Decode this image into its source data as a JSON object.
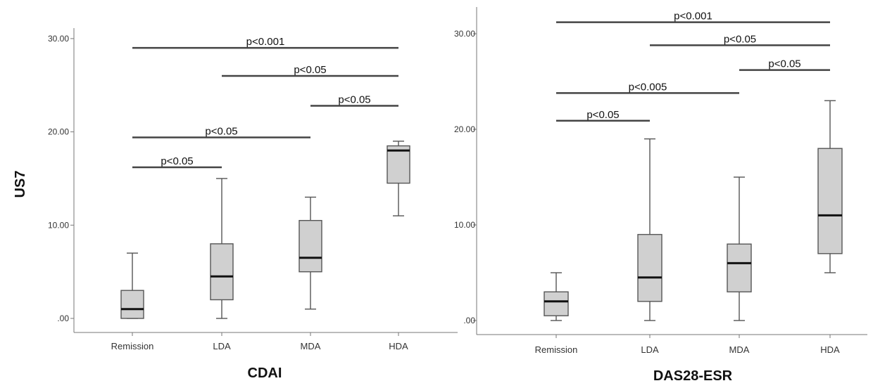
{
  "chart_data": [
    {
      "type": "box",
      "xlabel": "CDAI",
      "ylabel": "US7",
      "ylim": [
        0,
        30
      ],
      "yticks": [
        ".00",
        "10.00",
        "20.00",
        "30.00"
      ],
      "yticks_values": [
        0,
        10,
        20,
        30
      ],
      "categories": [
        "Remission",
        "LDA",
        "MDA",
        "HDA"
      ],
      "boxes": [
        {
          "category": "Remission",
          "min": 0,
          "q1": 0,
          "median": 1,
          "q3": 3,
          "max": 7
        },
        {
          "category": "LDA",
          "min": 0,
          "q1": 2,
          "median": 4.5,
          "q3": 8,
          "max": 15
        },
        {
          "category": "MDA",
          "min": 1,
          "q1": 5,
          "median": 6.5,
          "q3": 10.5,
          "max": 13
        },
        {
          "category": "HDA",
          "min": 11,
          "q1": 14.5,
          "median": 18,
          "q3": 18.5,
          "max": 19
        }
      ],
      "significance": [
        {
          "from": "Remission",
          "to": "HDA",
          "y": 29.0,
          "label": "p<0.001"
        },
        {
          "from": "LDA",
          "to": "HDA",
          "y": 26.0,
          "label": "p<0.05"
        },
        {
          "from": "MDA",
          "to": "HDA",
          "y": 22.8,
          "label": "p<0.05"
        },
        {
          "from": "Remission",
          "to": "MDA",
          "y": 19.4,
          "label": "p<0.05"
        },
        {
          "from": "Remission",
          "to": "LDA",
          "y": 16.2,
          "label": "p<0.05"
        }
      ]
    },
    {
      "type": "box",
      "xlabel": "DAS28-ESR",
      "ylabel": "",
      "ylim": [
        0,
        30
      ],
      "yticks": [
        ".00",
        "10.00",
        "20.00",
        "30.00"
      ],
      "yticks_values": [
        0,
        10,
        20,
        30
      ],
      "categories": [
        "Remission",
        "LDA",
        "MDA",
        "HDA"
      ],
      "boxes": [
        {
          "category": "Remission",
          "min": 0,
          "q1": 0.5,
          "median": 2,
          "q3": 3,
          "max": 5
        },
        {
          "category": "LDA",
          "min": 0,
          "q1": 2,
          "median": 4.5,
          "q3": 9,
          "max": 19
        },
        {
          "category": "MDA",
          "min": 0,
          "q1": 3,
          "median": 6,
          "q3": 8,
          "max": 15
        },
        {
          "category": "HDA",
          "min": 5,
          "q1": 7,
          "median": 11,
          "q3": 18,
          "max": 23
        }
      ],
      "significance": [
        {
          "from": "Remission",
          "to": "HDA",
          "y": 31.2,
          "label": "p<0.001"
        },
        {
          "from": "LDA",
          "to": "HDA",
          "y": 28.8,
          "label": "p<0.05"
        },
        {
          "from": "MDA",
          "to": "HDA",
          "y": 26.2,
          "label": "p<0.05"
        },
        {
          "from": "Remission",
          "to": "MDA",
          "y": 23.8,
          "label": "p<0.005"
        },
        {
          "from": "Remission",
          "to": "LDA",
          "y": 20.9,
          "label": "p<0.05"
        }
      ]
    }
  ]
}
